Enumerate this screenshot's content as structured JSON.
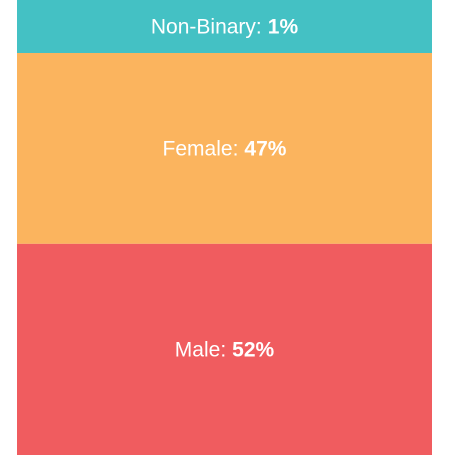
{
  "chart_data": {
    "type": "stacked-block",
    "categories": [
      "Non-Binary:",
      "Female:",
      "Male:"
    ],
    "values": [
      1,
      47,
      52
    ],
    "value_labels": [
      "1%",
      "47%",
      "52%"
    ],
    "colors": [
      "#44c1c4",
      "#fbb45e",
      "#f05c5f"
    ]
  }
}
